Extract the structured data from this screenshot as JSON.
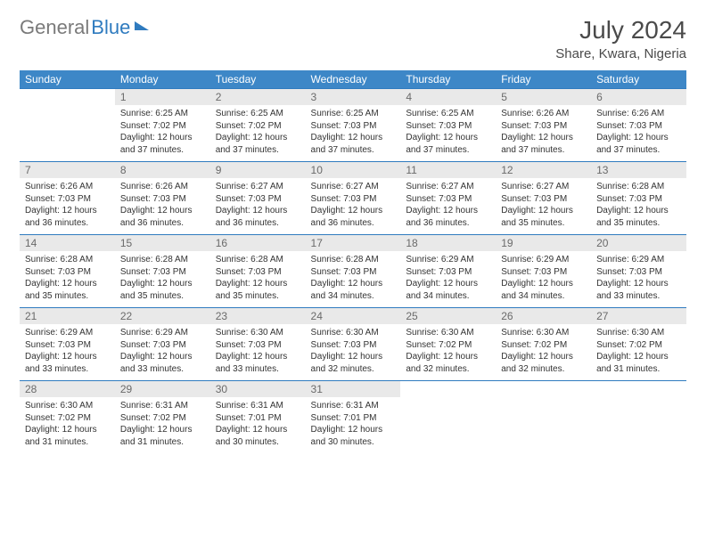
{
  "logo": {
    "text_gray": "General",
    "text_blue": "Blue"
  },
  "title": "July 2024",
  "location": "Share, Kwara, Nigeria",
  "colors": {
    "header_bg": "#3d87c7",
    "header_text": "#ffffff",
    "daynum_bg": "#e9e9e9",
    "daynum_text": "#6a6a6a",
    "border": "#2f7bbf",
    "body_text": "#333333",
    "title_text": "#4a4a4a"
  },
  "weekdays": [
    "Sunday",
    "Monday",
    "Tuesday",
    "Wednesday",
    "Thursday",
    "Friday",
    "Saturday"
  ],
  "first_weekday_index": 1,
  "days": [
    {
      "n": 1,
      "sunrise": "6:25 AM",
      "sunset": "7:02 PM",
      "daylight": "12 hours and 37 minutes."
    },
    {
      "n": 2,
      "sunrise": "6:25 AM",
      "sunset": "7:02 PM",
      "daylight": "12 hours and 37 minutes."
    },
    {
      "n": 3,
      "sunrise": "6:25 AM",
      "sunset": "7:03 PM",
      "daylight": "12 hours and 37 minutes."
    },
    {
      "n": 4,
      "sunrise": "6:25 AM",
      "sunset": "7:03 PM",
      "daylight": "12 hours and 37 minutes."
    },
    {
      "n": 5,
      "sunrise": "6:26 AM",
      "sunset": "7:03 PM",
      "daylight": "12 hours and 37 minutes."
    },
    {
      "n": 6,
      "sunrise": "6:26 AM",
      "sunset": "7:03 PM",
      "daylight": "12 hours and 37 minutes."
    },
    {
      "n": 7,
      "sunrise": "6:26 AM",
      "sunset": "7:03 PM",
      "daylight": "12 hours and 36 minutes."
    },
    {
      "n": 8,
      "sunrise": "6:26 AM",
      "sunset": "7:03 PM",
      "daylight": "12 hours and 36 minutes."
    },
    {
      "n": 9,
      "sunrise": "6:27 AM",
      "sunset": "7:03 PM",
      "daylight": "12 hours and 36 minutes."
    },
    {
      "n": 10,
      "sunrise": "6:27 AM",
      "sunset": "7:03 PM",
      "daylight": "12 hours and 36 minutes."
    },
    {
      "n": 11,
      "sunrise": "6:27 AM",
      "sunset": "7:03 PM",
      "daylight": "12 hours and 36 minutes."
    },
    {
      "n": 12,
      "sunrise": "6:27 AM",
      "sunset": "7:03 PM",
      "daylight": "12 hours and 35 minutes."
    },
    {
      "n": 13,
      "sunrise": "6:28 AM",
      "sunset": "7:03 PM",
      "daylight": "12 hours and 35 minutes."
    },
    {
      "n": 14,
      "sunrise": "6:28 AM",
      "sunset": "7:03 PM",
      "daylight": "12 hours and 35 minutes."
    },
    {
      "n": 15,
      "sunrise": "6:28 AM",
      "sunset": "7:03 PM",
      "daylight": "12 hours and 35 minutes."
    },
    {
      "n": 16,
      "sunrise": "6:28 AM",
      "sunset": "7:03 PM",
      "daylight": "12 hours and 35 minutes."
    },
    {
      "n": 17,
      "sunrise": "6:28 AM",
      "sunset": "7:03 PM",
      "daylight": "12 hours and 34 minutes."
    },
    {
      "n": 18,
      "sunrise": "6:29 AM",
      "sunset": "7:03 PM",
      "daylight": "12 hours and 34 minutes."
    },
    {
      "n": 19,
      "sunrise": "6:29 AM",
      "sunset": "7:03 PM",
      "daylight": "12 hours and 34 minutes."
    },
    {
      "n": 20,
      "sunrise": "6:29 AM",
      "sunset": "7:03 PM",
      "daylight": "12 hours and 33 minutes."
    },
    {
      "n": 21,
      "sunrise": "6:29 AM",
      "sunset": "7:03 PM",
      "daylight": "12 hours and 33 minutes."
    },
    {
      "n": 22,
      "sunrise": "6:29 AM",
      "sunset": "7:03 PM",
      "daylight": "12 hours and 33 minutes."
    },
    {
      "n": 23,
      "sunrise": "6:30 AM",
      "sunset": "7:03 PM",
      "daylight": "12 hours and 33 minutes."
    },
    {
      "n": 24,
      "sunrise": "6:30 AM",
      "sunset": "7:03 PM",
      "daylight": "12 hours and 32 minutes."
    },
    {
      "n": 25,
      "sunrise": "6:30 AM",
      "sunset": "7:02 PM",
      "daylight": "12 hours and 32 minutes."
    },
    {
      "n": 26,
      "sunrise": "6:30 AM",
      "sunset": "7:02 PM",
      "daylight": "12 hours and 32 minutes."
    },
    {
      "n": 27,
      "sunrise": "6:30 AM",
      "sunset": "7:02 PM",
      "daylight": "12 hours and 31 minutes."
    },
    {
      "n": 28,
      "sunrise": "6:30 AM",
      "sunset": "7:02 PM",
      "daylight": "12 hours and 31 minutes."
    },
    {
      "n": 29,
      "sunrise": "6:31 AM",
      "sunset": "7:02 PM",
      "daylight": "12 hours and 31 minutes."
    },
    {
      "n": 30,
      "sunrise": "6:31 AM",
      "sunset": "7:01 PM",
      "daylight": "12 hours and 30 minutes."
    },
    {
      "n": 31,
      "sunrise": "6:31 AM",
      "sunset": "7:01 PM",
      "daylight": "12 hours and 30 minutes."
    }
  ],
  "labels": {
    "sunrise": "Sunrise:",
    "sunset": "Sunset:",
    "daylight": "Daylight:"
  }
}
